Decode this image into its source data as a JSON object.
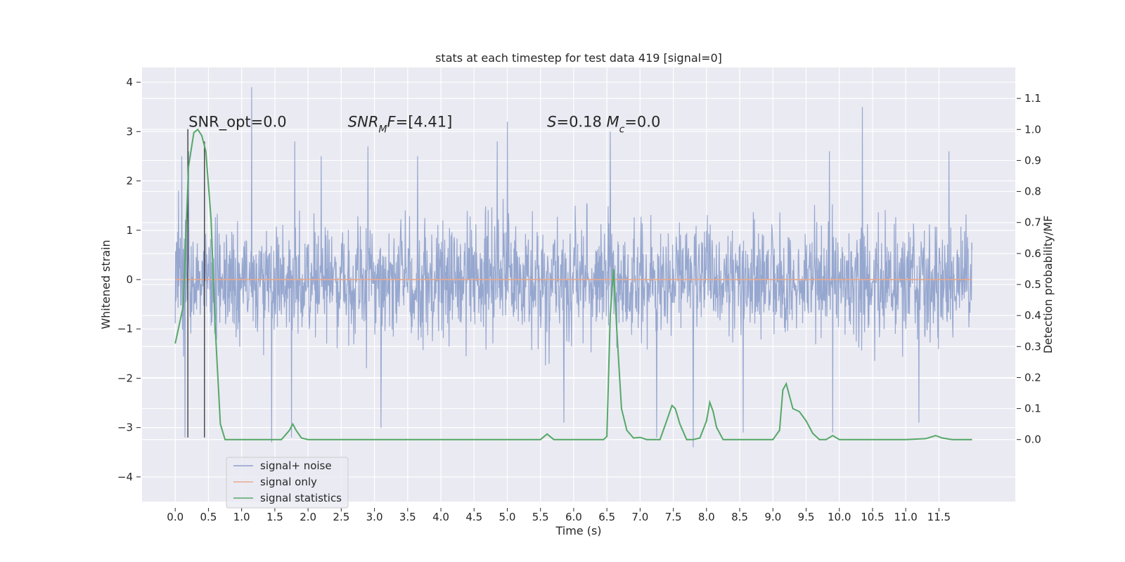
{
  "chart_data": {
    "type": "line",
    "title": "stats at each timestep for test data 419 [signal=0]",
    "xlabel": "Time (s)",
    "ylabel_left": "Whitened strain",
    "ylabel_right": "Detection probability/MF",
    "xlim": [
      -0.5,
      12.65
    ],
    "ylim_left": [
      -4.5,
      4.3
    ],
    "ylim_right": [
      -0.2,
      1.2
    ],
    "x_ticks": [
      0.0,
      0.5,
      1.0,
      1.5,
      2.0,
      2.5,
      3.0,
      3.5,
      4.0,
      4.5,
      5.0,
      5.5,
      6.0,
      6.5,
      7.0,
      7.5,
      8.0,
      8.5,
      9.0,
      9.5,
      10.0,
      10.5,
      11.0,
      11.5
    ],
    "x_tick_labels": [
      "0.0",
      "0.5",
      "1.0",
      "1.5",
      "2.0",
      "2.5",
      "3.0",
      "3.5",
      "4.0",
      "4.5",
      "5.0",
      "5.5",
      "6.0",
      "6.5",
      "7.0",
      "7.5",
      "8.0",
      "8.5",
      "9.0",
      "9.5",
      "10.0",
      "10.5",
      "11.0",
      "11.5"
    ],
    "y_left_ticks": [
      -4,
      -3,
      -2,
      -1,
      0,
      1,
      2,
      3,
      4
    ],
    "y_left_tick_labels": [
      "−4",
      "−3",
      "−2",
      "−1",
      "0",
      "1",
      "2",
      "3",
      "4"
    ],
    "y_right_ticks": [
      0.0,
      0.1,
      0.2,
      0.3,
      0.4,
      0.5,
      0.6,
      0.7,
      0.8,
      0.9,
      1.0,
      1.1
    ],
    "y_right_tick_labels": [
      "0.0",
      "0.1",
      "0.2",
      "0.3",
      "0.4",
      "0.5",
      "0.6",
      "0.7",
      "0.8",
      "0.9",
      "1.0",
      "1.1"
    ],
    "grid": true,
    "legend_position": "bottom-left",
    "annotations": [
      {
        "text": "SNR_opt=0.0",
        "x": 0.2,
        "y": 3.1
      },
      {
        "text": "SNR_MF=[4.41]",
        "x": 2.6,
        "y": 3.1
      },
      {
        "text": "S=0.18   M_c=0.0",
        "x": 5.6,
        "y": 3.1
      }
    ],
    "vertical_lines": [
      {
        "x": 0.19,
        "ymin": -3.2,
        "ymax": 3.05
      },
      {
        "x": 0.44,
        "ymin": -3.2,
        "ymax": 2.8
      }
    ],
    "series": [
      {
        "name": "signal+ noise",
        "axis": "left",
        "color": "#8da0cb",
        "x_range": [
          0.0,
          12.0
        ],
        "envelope_note": "dense noise, upper roughly 1.2–2.6 with spikes up to 3.9, lower roughly -1.8 to -2.6 with spikes down to -3.5",
        "spikes_upper": [
          [
            0.05,
            1.8
          ],
          [
            0.1,
            2.5
          ],
          [
            0.2,
            2.6
          ],
          [
            1.15,
            3.9
          ],
          [
            1.8,
            2.8
          ],
          [
            2.2,
            2.5
          ],
          [
            2.9,
            2.7
          ],
          [
            3.65,
            2.5
          ],
          [
            4.85,
            2.8
          ],
          [
            5.0,
            3.2
          ],
          [
            6.55,
            3.0
          ],
          [
            9.85,
            2.6
          ],
          [
            10.35,
            3.5
          ],
          [
            11.65,
            2.6
          ]
        ],
        "spikes_lower": [
          [
            0.15,
            -3.2
          ],
          [
            1.45,
            -3.3
          ],
          [
            1.75,
            -3.2
          ],
          [
            3.1,
            -3.0
          ],
          [
            5.85,
            -2.9
          ],
          [
            7.25,
            -3.2
          ],
          [
            7.8,
            -3.4
          ],
          [
            8.55,
            -3.1
          ],
          [
            9.9,
            -3.1
          ],
          [
            11.2,
            -2.9
          ]
        ]
      },
      {
        "name": "signal only",
        "axis": "left",
        "color": "#e8a98c",
        "x": [
          0.0,
          12.0
        ],
        "y": [
          0.0,
          0.0
        ]
      },
      {
        "name": "signal statistics",
        "axis": "right",
        "color": "#55a868",
        "x": [
          0.0,
          0.12,
          0.2,
          0.28,
          0.34,
          0.4,
          0.46,
          0.54,
          0.6,
          0.68,
          0.75,
          0.85,
          1.0,
          1.3,
          1.6,
          1.72,
          1.77,
          1.82,
          1.9,
          2.0,
          2.3,
          3.0,
          3.5,
          4.0,
          4.5,
          5.0,
          5.3,
          5.5,
          5.6,
          5.7,
          5.9,
          6.2,
          6.45,
          6.5,
          6.55,
          6.6,
          6.65,
          6.72,
          6.8,
          6.9,
          7.0,
          7.1,
          7.3,
          7.4,
          7.48,
          7.53,
          7.6,
          7.7,
          7.8,
          7.9,
          8.0,
          8.05,
          8.1,
          8.15,
          8.25,
          8.35,
          8.6,
          9.0,
          9.1,
          9.15,
          9.2,
          9.25,
          9.3,
          9.4,
          9.5,
          9.6,
          9.7,
          9.8,
          9.9,
          10.0,
          10.2,
          10.5,
          11.0,
          11.3,
          11.45,
          11.55,
          11.7,
          12.0
        ],
        "y": [
          0.31,
          0.43,
          0.88,
          0.99,
          1.0,
          0.98,
          0.93,
          0.71,
          0.37,
          0.05,
          0.0,
          0.0,
          0.0,
          0.0,
          0.0,
          0.03,
          0.05,
          0.03,
          0.005,
          0.0,
          0.0,
          0.0,
          0.0,
          0.0,
          0.0,
          0.0,
          0.0,
          0.0,
          0.018,
          0.0,
          0.0,
          0.0,
          0.0,
          0.01,
          0.4,
          0.55,
          0.35,
          0.1,
          0.03,
          0.005,
          0.007,
          0.0,
          0.0,
          0.06,
          0.11,
          0.1,
          0.05,
          0.0,
          0.0,
          0.005,
          0.06,
          0.12,
          0.09,
          0.04,
          0.0,
          0.0,
          0.0,
          0.0,
          0.03,
          0.16,
          0.18,
          0.14,
          0.1,
          0.09,
          0.06,
          0.02,
          0.0,
          0.0,
          0.013,
          0.0,
          0.0,
          0.0,
          0.0,
          0.003,
          0.013,
          0.005,
          0.0,
          0.0
        ]
      }
    ]
  },
  "legend": {
    "items": [
      {
        "label": "signal+ noise",
        "color": "#8da0cb"
      },
      {
        "label": "signal only",
        "color": "#e8a98c"
      },
      {
        "label": "signal statistics",
        "color": "#55a868"
      }
    ]
  }
}
